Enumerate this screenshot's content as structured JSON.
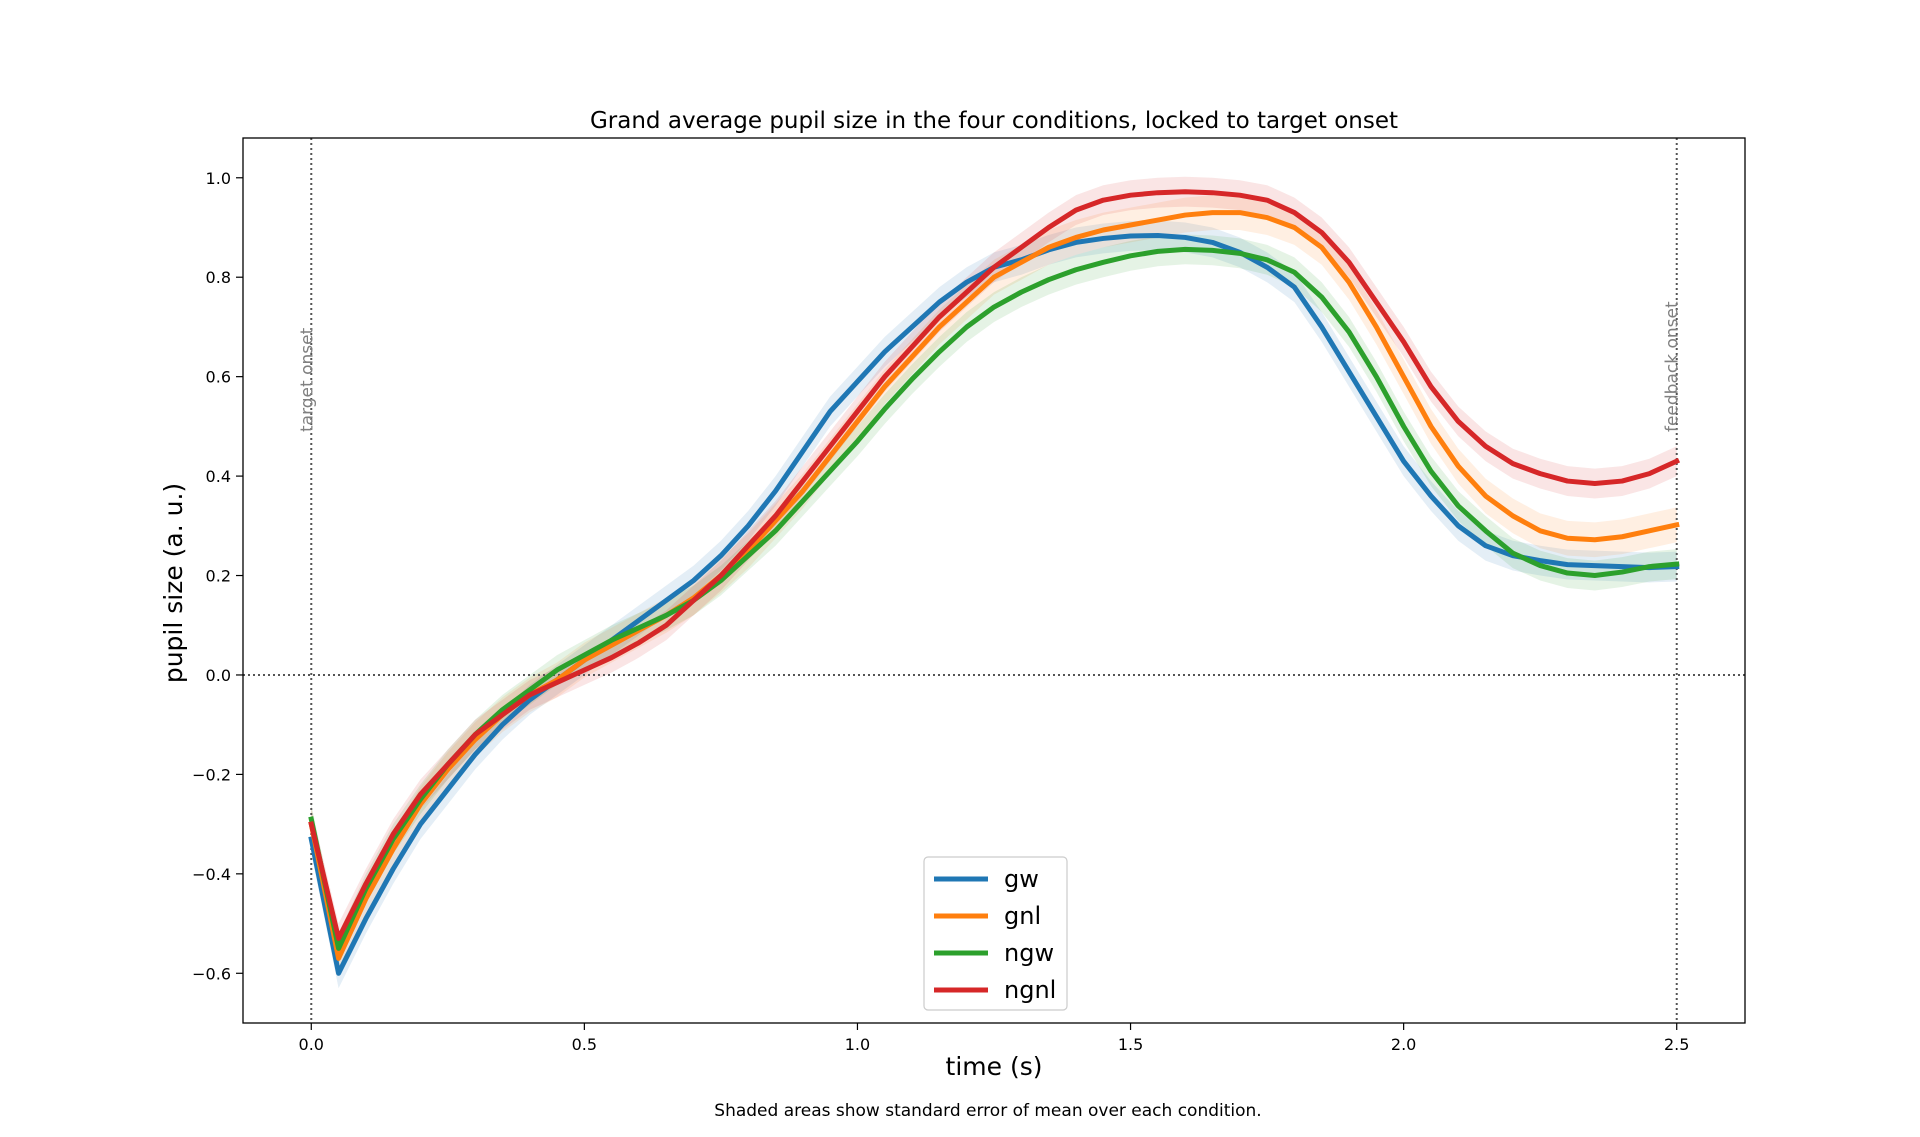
{
  "chart_data": {
    "type": "line",
    "title": "Grand average pupil size in the four conditions, locked to target onset",
    "xlabel": "time (s)",
    "ylabel": "pupil size (a. u.)",
    "caption": "Shaded areas show standard error of mean over each condition.",
    "xlim": [
      -0.125,
      2.625
    ],
    "ylim": [
      -0.7,
      1.08
    ],
    "xticks": [
      0.0,
      0.5,
      1.0,
      1.5,
      2.0,
      2.5
    ],
    "xtick_labels": [
      "0.0",
      "0.5",
      "1.0",
      "1.5",
      "2.0",
      "2.5"
    ],
    "yticks": [
      -0.6,
      -0.4,
      -0.2,
      0.0,
      0.2,
      0.4,
      0.6,
      0.8,
      1.0
    ],
    "ytick_labels": [
      "−0.6",
      "−0.4",
      "−0.2",
      "0.0",
      "0.2",
      "0.4",
      "0.6",
      "0.8",
      "1.0"
    ],
    "grid": false,
    "legend_position": "bottom-center",
    "x": [
      0.0,
      0.05,
      0.1,
      0.15,
      0.2,
      0.25,
      0.3,
      0.35,
      0.4,
      0.45,
      0.5,
      0.55,
      0.6,
      0.65,
      0.7,
      0.75,
      0.8,
      0.85,
      0.9,
      0.95,
      1.0,
      1.05,
      1.1,
      1.15,
      1.2,
      1.25,
      1.3,
      1.35,
      1.4,
      1.45,
      1.5,
      1.55,
      1.6,
      1.65,
      1.7,
      1.75,
      1.8,
      1.85,
      1.9,
      1.95,
      2.0,
      2.05,
      2.1,
      2.15,
      2.2,
      2.25,
      2.3,
      2.35,
      2.4,
      2.45,
      2.5
    ],
    "series": [
      {
        "name": "gw",
        "color": "#1f77b4",
        "sem": 0.03,
        "values": [
          -0.33,
          -0.6,
          -0.49,
          -0.39,
          -0.3,
          -0.23,
          -0.16,
          -0.1,
          -0.05,
          -0.01,
          0.03,
          0.07,
          0.11,
          0.15,
          0.19,
          0.24,
          0.3,
          0.37,
          0.45,
          0.53,
          0.59,
          0.65,
          0.7,
          0.75,
          0.79,
          0.82,
          0.835,
          0.855,
          0.87,
          0.878,
          0.883,
          0.884,
          0.88,
          0.87,
          0.85,
          0.82,
          0.78,
          0.7,
          0.61,
          0.52,
          0.43,
          0.36,
          0.3,
          0.26,
          0.24,
          0.23,
          0.222,
          0.22,
          0.218,
          0.216,
          0.218
        ]
      },
      {
        "name": "gnl",
        "color": "#ff7f0e",
        "sem": 0.035,
        "values": [
          -0.3,
          -0.57,
          -0.45,
          -0.35,
          -0.26,
          -0.19,
          -0.13,
          -0.08,
          -0.04,
          -0.01,
          0.03,
          0.06,
          0.09,
          0.12,
          0.155,
          0.2,
          0.25,
          0.31,
          0.37,
          0.44,
          0.51,
          0.58,
          0.64,
          0.7,
          0.75,
          0.8,
          0.83,
          0.86,
          0.88,
          0.895,
          0.905,
          0.915,
          0.925,
          0.93,
          0.93,
          0.92,
          0.9,
          0.86,
          0.79,
          0.7,
          0.6,
          0.5,
          0.42,
          0.36,
          0.32,
          0.29,
          0.275,
          0.272,
          0.278,
          0.29,
          0.302
        ]
      },
      {
        "name": "ngw",
        "color": "#2ca02c",
        "sem": 0.03,
        "values": [
          -0.29,
          -0.55,
          -0.43,
          -0.33,
          -0.25,
          -0.18,
          -0.12,
          -0.07,
          -0.03,
          0.01,
          0.04,
          0.07,
          0.095,
          0.12,
          0.15,
          0.19,
          0.24,
          0.29,
          0.35,
          0.41,
          0.47,
          0.535,
          0.595,
          0.65,
          0.7,
          0.74,
          0.77,
          0.795,
          0.815,
          0.83,
          0.843,
          0.852,
          0.856,
          0.854,
          0.848,
          0.835,
          0.81,
          0.76,
          0.69,
          0.6,
          0.5,
          0.41,
          0.34,
          0.29,
          0.245,
          0.22,
          0.205,
          0.2,
          0.207,
          0.218,
          0.223
        ]
      },
      {
        "name": "ngnl",
        "color": "#d62728",
        "sem": 0.03,
        "values": [
          -0.3,
          -0.53,
          -0.42,
          -0.32,
          -0.24,
          -0.18,
          -0.12,
          -0.08,
          -0.04,
          -0.015,
          0.01,
          0.035,
          0.065,
          0.1,
          0.15,
          0.2,
          0.26,
          0.32,
          0.39,
          0.46,
          0.53,
          0.6,
          0.66,
          0.72,
          0.77,
          0.82,
          0.86,
          0.9,
          0.935,
          0.955,
          0.965,
          0.97,
          0.972,
          0.97,
          0.965,
          0.955,
          0.93,
          0.89,
          0.83,
          0.75,
          0.67,
          0.58,
          0.51,
          0.46,
          0.425,
          0.405,
          0.39,
          0.385,
          0.39,
          0.405,
          0.43
        ]
      }
    ],
    "hlines": [
      {
        "y": 0.0,
        "style": "dotted",
        "color": "#555555"
      }
    ],
    "vlines": [
      {
        "x": 0.0,
        "label": "target onset",
        "style": "dotted",
        "color": "#555555"
      },
      {
        "x": 2.5,
        "label": "feedback onset",
        "style": "dotted",
        "color": "#555555"
      }
    ]
  }
}
